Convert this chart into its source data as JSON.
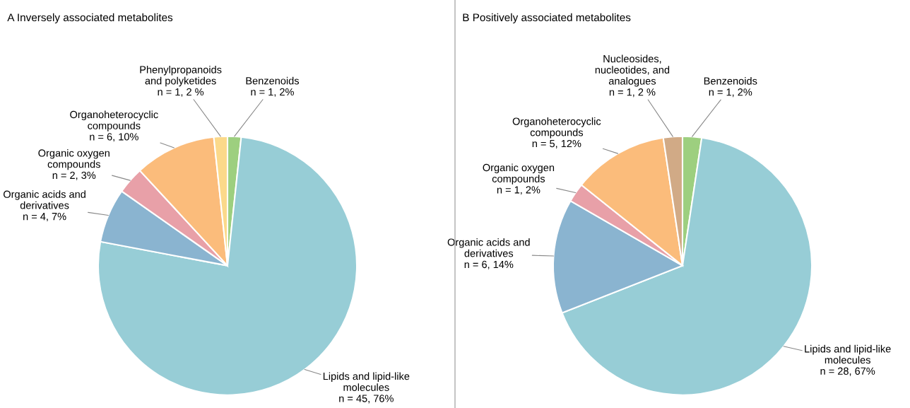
{
  "chart_data": [
    {
      "type": "pie",
      "title": "A Inversely associated metabolites",
      "categories": [
        "Benzenoids",
        "Lipids and lipid-like\nmolecules",
        "Organic acids and\nderivatives",
        "Organic oxygen\ncompounds",
        "Organoheterocyclic\ncompounds",
        "Phenylpropanoids\nand polyketides"
      ],
      "values": [
        1,
        45,
        4,
        2,
        6,
        1
      ],
      "value_labels": [
        "n = 1, 2%",
        "n = 45, 76%",
        "n = 4, 7%",
        "n = 2, 3%",
        "n = 6, 10%",
        "n = 1, 2 %"
      ],
      "colors": [
        "#9dcf7f",
        "#97cdd6",
        "#8ab4d0",
        "#e8a0a8",
        "#fbbc7b",
        "#fbd98a"
      ]
    },
    {
      "type": "pie",
      "title": "B Positively associated metabolites",
      "categories": [
        "Benzenoids",
        "Lipids and lipid-like\nmolecules",
        "Organic acids and\nderivatives",
        "Organic oxygen\ncompounds",
        "Organoheterocyclic\ncompounds",
        "Nucleosides,\nnucleotides, and\nanalogues"
      ],
      "values": [
        1,
        28,
        6,
        1,
        5,
        1
      ],
      "value_labels": [
        "n = 1, 2%",
        "n = 28, 67%",
        "n = 6, 14%",
        "n = 1, 2%",
        "n = 5, 12%",
        "n = 1, 2 %"
      ],
      "colors": [
        "#9dcf7f",
        "#97cdd6",
        "#8ab4d0",
        "#e8a0a8",
        "#fbbc7b",
        "#d1aa86"
      ]
    }
  ]
}
